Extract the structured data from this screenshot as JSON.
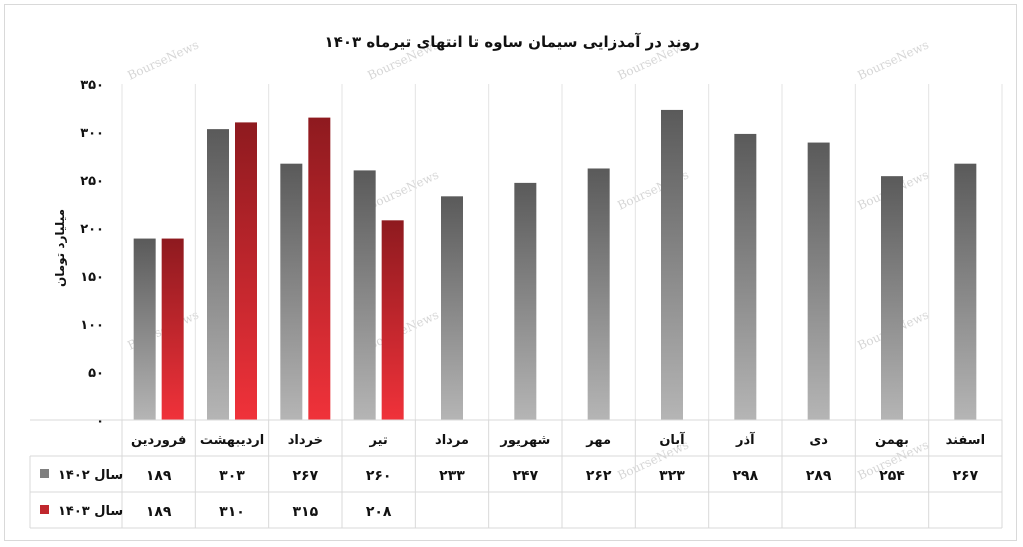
{
  "chart_data": {
    "type": "bar",
    "title": "روند در آمدزایی سیمان ساوه تا انتهای تیرماه ۱۴۰۳",
    "ylabel": "میلیارد تومان",
    "ylim": [
      0,
      350
    ],
    "yticks": [
      "۰",
      "۵۰",
      "۱۰۰",
      "۱۵۰",
      "۲۰۰",
      "۲۵۰",
      "۳۰۰",
      "۳۵۰"
    ],
    "yticks_values": [
      0,
      50,
      100,
      150,
      200,
      250,
      300,
      350
    ],
    "categories": [
      "فروردین",
      "اردیبهشت",
      "خرداد",
      "تیر",
      "مرداد",
      "شهریور",
      "مهر",
      "آبان",
      "آذر",
      "دی",
      "بهمن",
      "اسفند"
    ],
    "series": [
      {
        "name": "سال ۱۴۰۲",
        "color": "#7f7f7f",
        "values": [
          189,
          303,
          267,
          260,
          233,
          247,
          262,
          323,
          298,
          289,
          254,
          267
        ],
        "labels": [
          "۱۸۹",
          "۳۰۳",
          "۲۶۷",
          "۲۶۰",
          "۲۳۳",
          "۲۴۷",
          "۲۶۲",
          "۳۲۳",
          "۲۹۸",
          "۲۸۹",
          "۲۵۴",
          "۲۶۷"
        ]
      },
      {
        "name": "سال ۱۴۰۳",
        "color": "#c0272d",
        "values": [
          189,
          310,
          315,
          208,
          null,
          null,
          null,
          null,
          null,
          null,
          null,
          null
        ],
        "labels": [
          "۱۸۹",
          "۳۱۰",
          "۳۱۵",
          "۲۰۸",
          "",
          "",
          "",
          "",
          "",
          "",
          "",
          ""
        ]
      }
    ],
    "grid": false,
    "legend": "data-table-left",
    "watermark": "BourseNews"
  }
}
